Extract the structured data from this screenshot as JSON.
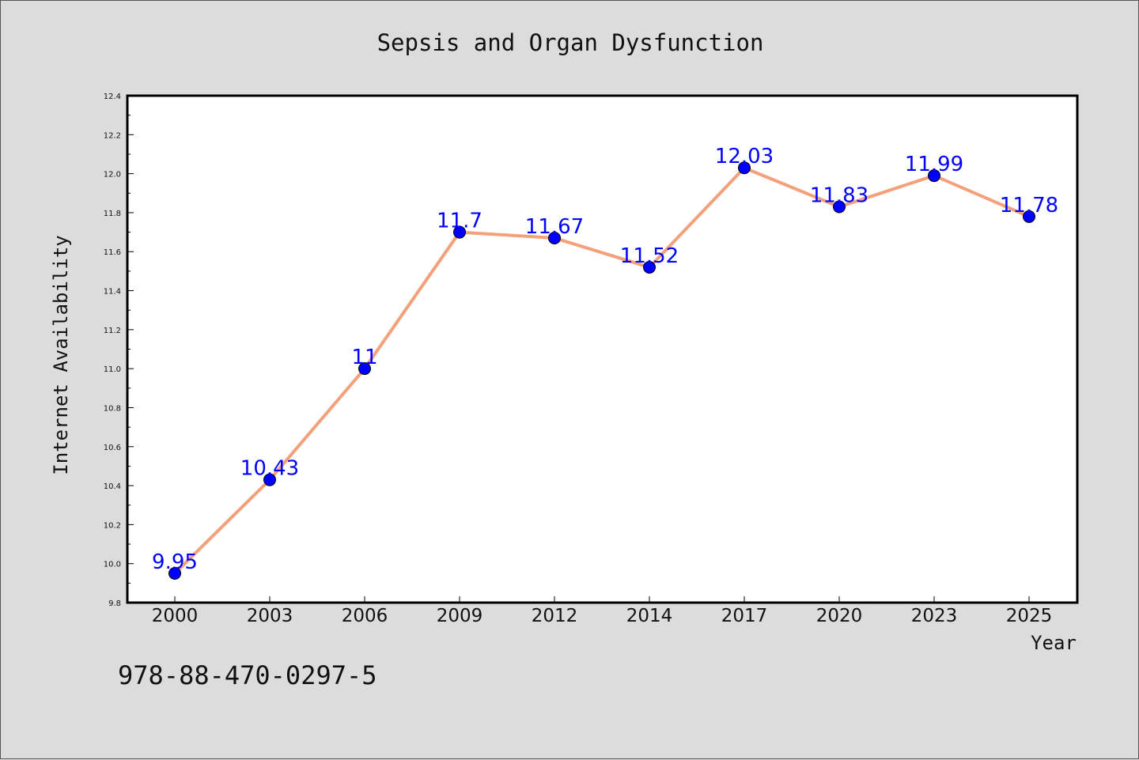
{
  "chart_data": {
    "type": "line",
    "title": "Sepsis and Organ Dysfunction",
    "xlabel": "Year",
    "ylabel": "Internet Availability",
    "categories": [
      "2000",
      "2003",
      "2006",
      "2009",
      "2012",
      "2014",
      "2017",
      "2020",
      "2023",
      "2025"
    ],
    "series": [
      {
        "values": [
          9.95,
          10.43,
          11.0,
          11.7,
          11.67,
          11.52,
          12.03,
          11.83,
          11.99,
          11.78
        ],
        "data_labels": [
          "9.95",
          "10.43",
          "11",
          "11.7",
          "11.67",
          "11.52",
          "12.03",
          "11.83",
          "11.99",
          "11.78"
        ],
        "line_color": "#f4a07a",
        "marker_color": "#0000ff"
      }
    ],
    "ylim": [
      9.8,
      12.4
    ],
    "yticks": [
      "9.8",
      "10.0",
      "10.2",
      "10.4",
      "10.6",
      "10.8",
      "11.0",
      "11.2",
      "11.4",
      "11.6",
      "11.8",
      "12.0",
      "12.2",
      "12.4"
    ],
    "grid": false,
    "legend": "none"
  },
  "footer": {
    "isbn": "978-88-470-0297-5"
  },
  "colors": {
    "background": "#dcdcdc",
    "plot_background": "#ffffff",
    "data_label": "#0000ff"
  }
}
